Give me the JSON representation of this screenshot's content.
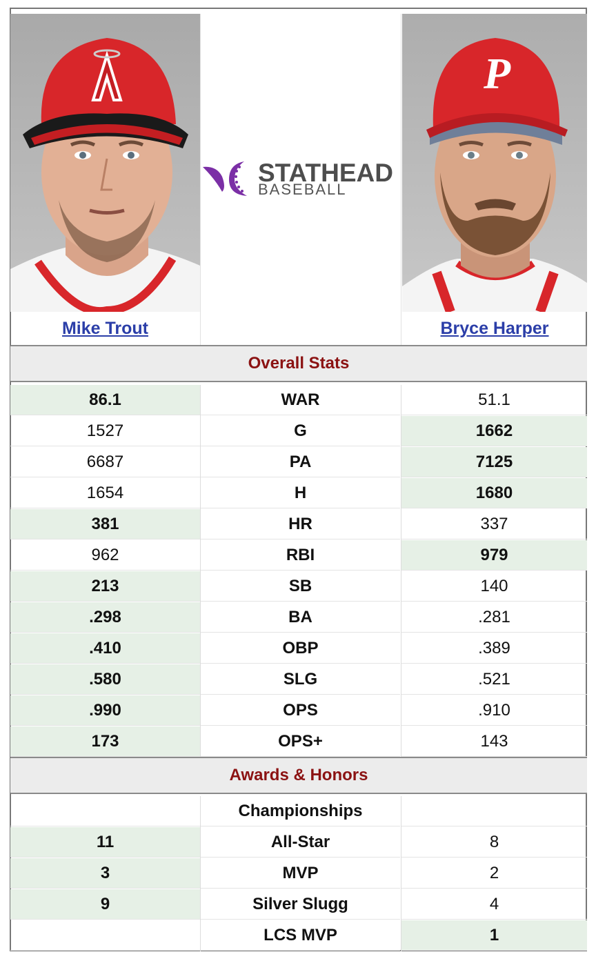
{
  "players": {
    "left": {
      "name": "Mike Trout"
    },
    "right": {
      "name": "Bryce Harper"
    }
  },
  "logo": {
    "line1": "STATHEAD",
    "line2": "BASEBALL",
    "accent": "#7b2fa6"
  },
  "colors": {
    "win_bg": "#e6f0e6",
    "section_text": "#8b1212",
    "link": "#2b3ea8"
  },
  "sections": {
    "overall": {
      "title": "Overall Stats",
      "rows": [
        {
          "stat": "WAR",
          "left": "86.1",
          "right": "51.1",
          "winner": "left"
        },
        {
          "stat": "G",
          "left": "1527",
          "right": "1662",
          "winner": "right"
        },
        {
          "stat": "PA",
          "left": "6687",
          "right": "7125",
          "winner": "right"
        },
        {
          "stat": "H",
          "left": "1654",
          "right": "1680",
          "winner": "right"
        },
        {
          "stat": "HR",
          "left": "381",
          "right": "337",
          "winner": "left"
        },
        {
          "stat": "RBI",
          "left": "962",
          "right": "979",
          "winner": "right"
        },
        {
          "stat": "SB",
          "left": "213",
          "right": "140",
          "winner": "left"
        },
        {
          "stat": "BA",
          "left": ".298",
          "right": ".281",
          "winner": "left"
        },
        {
          "stat": "OBP",
          "left": ".410",
          "right": ".389",
          "winner": "left"
        },
        {
          "stat": "SLG",
          "left": ".580",
          "right": ".521",
          "winner": "left"
        },
        {
          "stat": "OPS",
          "left": ".990",
          "right": ".910",
          "winner": "left"
        },
        {
          "stat": "OPS+",
          "left": "173",
          "right": "143",
          "winner": "left"
        }
      ]
    },
    "awards": {
      "title": "Awards & Honors",
      "rows": [
        {
          "stat": "Championships",
          "left": "",
          "right": "",
          "winner": "none"
        },
        {
          "stat": "All-Star",
          "left": "11",
          "right": "8",
          "winner": "left"
        },
        {
          "stat": "MVP",
          "left": "3",
          "right": "2",
          "winner": "left"
        },
        {
          "stat": "Silver Slugg",
          "left": "9",
          "right": "4",
          "winner": "left"
        },
        {
          "stat": "LCS MVP",
          "left": "",
          "right": "1",
          "winner": "right"
        }
      ]
    }
  }
}
